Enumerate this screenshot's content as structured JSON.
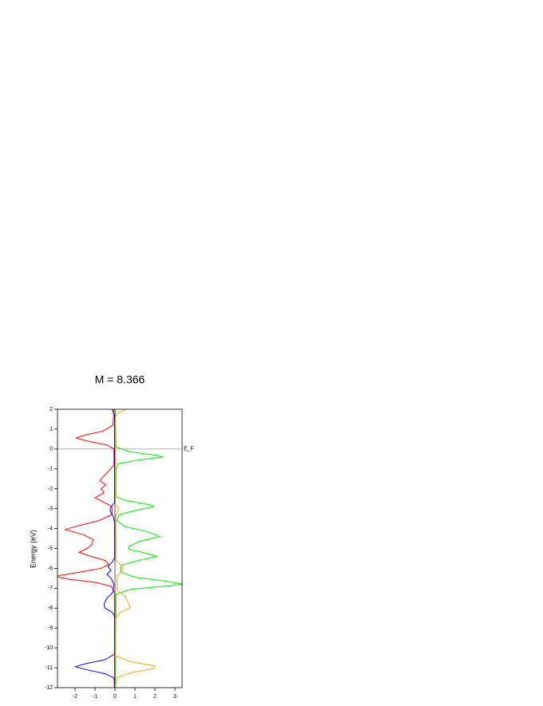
{
  "chart_data": {
    "type": "line",
    "title": "M = 8.366",
    "ylabel": "Energy (eV)",
    "annotation": "E_F",
    "xlim": [
      -2.88,
      3.36
    ],
    "ylim": [
      -12,
      2
    ],
    "xticks": [
      -2,
      -1,
      0,
      1,
      2,
      3
    ],
    "yticks": [
      -12,
      -11,
      -10,
      -9,
      -8,
      -7,
      -6,
      -5,
      -4,
      -3,
      -2,
      -1,
      0,
      1,
      2
    ],
    "fermi_level": 0,
    "series": [
      {
        "color": "#ff0000",
        "y": [
          2,
          1.2,
          0.9,
          0.7,
          0.55,
          0.4,
          0.2,
          0,
          -0.8,
          -1.1,
          -1.4,
          -1.6,
          -1.8,
          -2.0,
          -2.2,
          -2.45,
          -2.65,
          -2.9,
          -3.3,
          -3.6,
          -3.85,
          -4.05,
          -4.3,
          -4.55,
          -4.8,
          -5.0,
          -5.2,
          -5.4,
          -5.6,
          -5.8,
          -6.0,
          -6.2,
          -6.4,
          -6.55,
          -6.7,
          -6.9,
          -7.2,
          -12
        ],
        "x": [
          -0.05,
          -0.1,
          -0.6,
          -1.5,
          -1.95,
          -1.4,
          -0.4,
          -0.05,
          -0.05,
          -0.3,
          -0.6,
          -0.75,
          -0.45,
          -0.7,
          -0.55,
          -1.0,
          -0.6,
          -0.15,
          -0.15,
          -0.8,
          -1.8,
          -2.5,
          -1.6,
          -1.1,
          -1.15,
          -1.4,
          -1.8,
          -1.2,
          -0.5,
          -0.3,
          -0.7,
          -1.8,
          -3.0,
          -2.3,
          -1.0,
          -0.2,
          -0.02,
          -0.02
        ]
      },
      {
        "color": "#0000ff",
        "y": [
          2,
          1.7,
          -2.7,
          -2.9,
          -3.1,
          -3.4,
          -3.7,
          -5.5,
          -5.7,
          -5.9,
          -6.1,
          -6.3,
          -6.5,
          -6.8,
          -7.2,
          -7.5,
          -7.8,
          -8.0,
          -8.2,
          -8.4,
          -10.3,
          -10.6,
          -10.8,
          -10.95,
          -11.1,
          -11.3,
          -11.5,
          -12
        ],
        "x": [
          -0.15,
          -0.02,
          -0.02,
          -0.2,
          -0.25,
          -0.08,
          -0.02,
          -0.02,
          -0.15,
          -0.35,
          -0.2,
          -0.4,
          -0.2,
          -0.05,
          -0.1,
          -0.4,
          -0.55,
          -0.5,
          -0.15,
          -0.02,
          -0.02,
          -0.5,
          -1.5,
          -2.0,
          -1.4,
          -0.5,
          -0.05,
          -0.02
        ]
      },
      {
        "color": "#00ee00",
        "y": [
          2,
          0.1,
          -0.15,
          -0.3,
          -0.4,
          -0.55,
          -0.75,
          -1,
          -2.4,
          -2.6,
          -2.8,
          -2.9,
          -3.05,
          -3.3,
          -3.6,
          -3.9,
          -4.15,
          -4.4,
          -4.65,
          -4.9,
          -5.05,
          -5.2,
          -5.4,
          -5.6,
          -5.85,
          -6.2,
          -6.45,
          -6.65,
          -6.8,
          -6.9,
          -7.05,
          -7.3,
          -12
        ],
        "x": [
          0.02,
          0.05,
          0.8,
          2.0,
          2.4,
          1.2,
          0.15,
          0.05,
          0.05,
          0.6,
          1.7,
          1.95,
          1.2,
          0.2,
          0.1,
          0.5,
          1.6,
          2.25,
          1.2,
          0.7,
          0.7,
          1.4,
          2.1,
          1.2,
          0.3,
          0.3,
          1.0,
          2.6,
          3.4,
          2.5,
          0.8,
          0.05,
          0.02
        ]
      },
      {
        "color": "#ffa500",
        "y": [
          2,
          1.85,
          1.6,
          -2.8,
          -3.0,
          -3.3,
          -5.6,
          -5.9,
          -6.1,
          -6.4,
          -7.1,
          -7.4,
          -7.8,
          -8.0,
          -8.2,
          -8.5,
          -10.4,
          -10.7,
          -10.9,
          -11.05,
          -11.25,
          -11.5,
          -12
        ],
        "x": [
          0.6,
          0.2,
          0.02,
          0.02,
          0.2,
          0.05,
          0.05,
          0.4,
          0.4,
          0.1,
          0.1,
          0.5,
          0.7,
          0.75,
          0.3,
          0.02,
          0.02,
          0.8,
          2.0,
          1.9,
          0.8,
          0.1,
          0.02
        ]
      }
    ]
  }
}
